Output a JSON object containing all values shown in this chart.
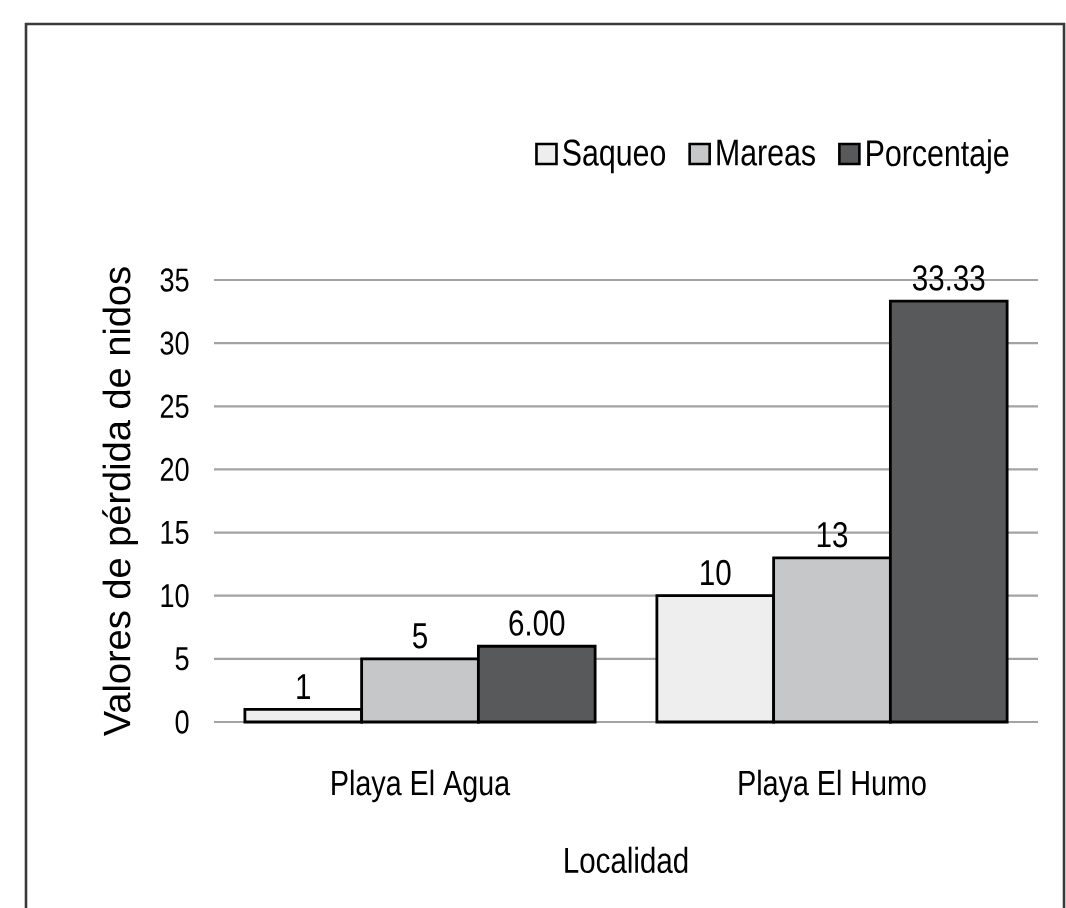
{
  "chart_data": {
    "type": "bar",
    "xlabel": "Localidad",
    "ylabel": "Valores de pérdida de nidos",
    "categories": [
      "Playa El Agua",
      "Playa El Humo"
    ],
    "series": [
      {
        "name": "Saqueo",
        "color": "#eeeeee",
        "values": [
          1,
          10
        ],
        "value_labels": [
          "1",
          "10"
        ]
      },
      {
        "name": "Mareas",
        "color": "#c6c7c9",
        "values": [
          5,
          13
        ],
        "value_labels": [
          "5",
          "13"
        ]
      },
      {
        "name": "Porcentaje",
        "color": "#58595b",
        "values": [
          6.0,
          33.33
        ],
        "value_labels": [
          "6.00",
          "33.33"
        ]
      }
    ],
    "ylim": [
      0,
      35
    ],
    "yticks": [
      0,
      5,
      10,
      15,
      20,
      25,
      30,
      35
    ],
    "grid": "y",
    "legend": "top right"
  }
}
